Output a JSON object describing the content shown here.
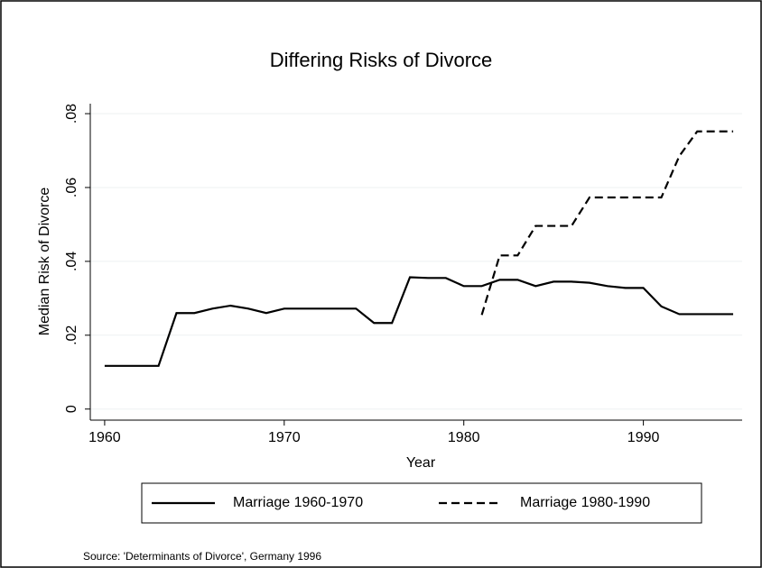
{
  "chart_data": {
    "type": "line",
    "title": "Differing Risks of Divorce",
    "x_label": "Year",
    "y_label": "Median Risk of Divorce",
    "note": "Source: 'Determinants of Divorce', Germany 1996",
    "x": [
      1960,
      1961,
      1962,
      1963,
      1964,
      1965,
      1966,
      1967,
      1968,
      1969,
      1970,
      1971,
      1972,
      1973,
      1974,
      1975,
      1976,
      1977,
      1978,
      1979,
      1980,
      1981,
      1982,
      1983,
      1984,
      1985,
      1986,
      1987,
      1988,
      1989,
      1990,
      1991,
      1992,
      1993,
      1994,
      1995
    ],
    "series": [
      {
        "name": "Marriage 1960-1970",
        "color": "#000000",
        "line_style": "solid",
        "values": [
          0.0117,
          0.0117,
          0.0117,
          0.0117,
          0.026,
          0.026,
          0.0272,
          0.028,
          0.0272,
          0.026,
          0.0272,
          0.0272,
          0.0272,
          0.0272,
          0.0272,
          0.0233,
          0.0233,
          0.0357,
          0.0355,
          0.0355,
          0.0333,
          0.0333,
          0.035,
          0.035,
          0.0333,
          0.0345,
          0.0345,
          0.0342,
          0.0333,
          0.0328,
          0.0328,
          0.0278,
          0.0257,
          0.0257,
          0.0257,
          0.0257
        ]
      },
      {
        "name": "Marriage 1980-1990",
        "color": "#000000",
        "line_style": "dashed",
        "values": [
          null,
          null,
          null,
          null,
          null,
          null,
          null,
          null,
          null,
          null,
          null,
          null,
          null,
          null,
          null,
          null,
          null,
          null,
          null,
          null,
          null,
          0.0255,
          0.0416,
          0.0416,
          0.0496,
          0.0496,
          0.0496,
          0.0573,
          0.0573,
          0.0573,
          0.0573,
          0.0573,
          0.0685,
          0.0752,
          0.0752,
          0.0752
        ]
      }
    ],
    "xlim": [
      1959.2,
      1995.5
    ],
    "ylim": [
      -0.003,
      0.0827
    ],
    "xticks": [
      1960,
      1970,
      1980,
      1990
    ],
    "yticks": [
      0,
      {
        "value": 0.02,
        "label": ".02"
      },
      {
        "value": 0.04,
        "label": ".04"
      },
      {
        "value": 0.06,
        "label": ".06"
      },
      {
        "value": 0.08,
        "label": ".08"
      }
    ],
    "grid": true,
    "legend_position": "bottom"
  }
}
